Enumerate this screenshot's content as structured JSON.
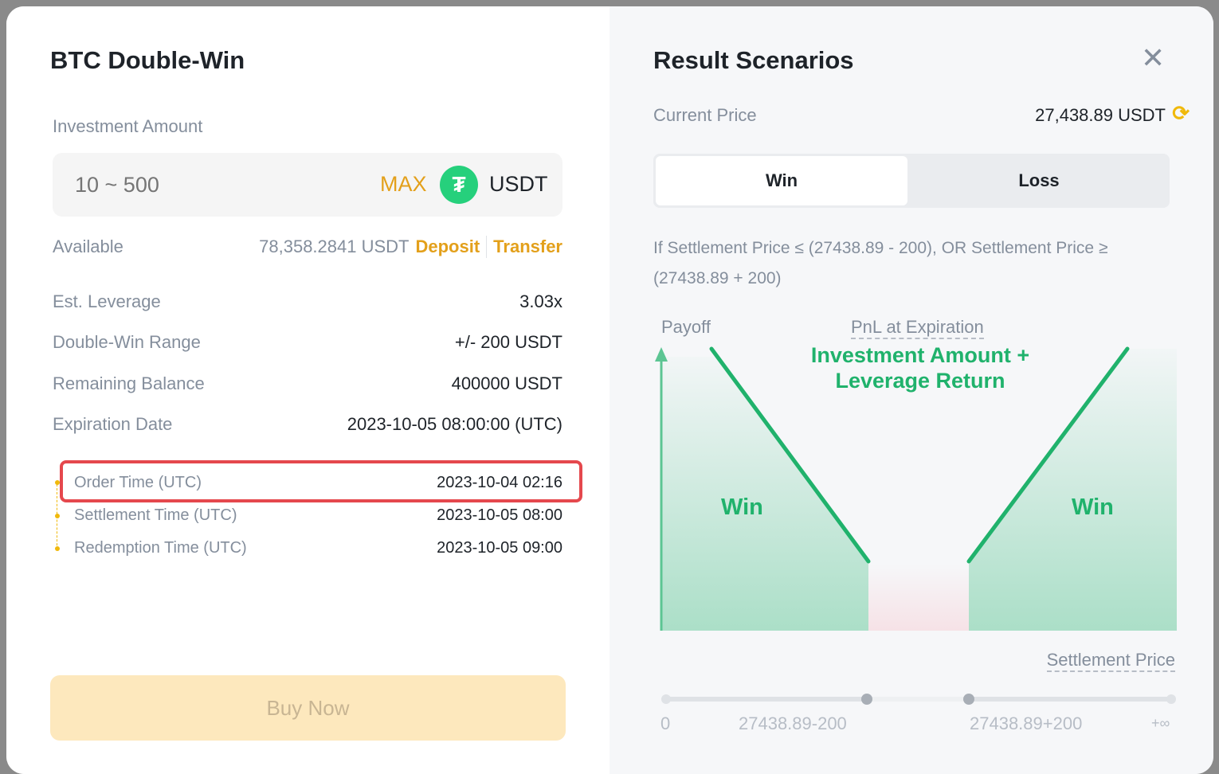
{
  "left": {
    "title": "BTC Double-Win",
    "investment_label": "Investment Amount",
    "investment_placeholder": "10 ~ 500",
    "max_label": "MAX",
    "currency": "USDT",
    "available_label": "Available",
    "available_value": "78,358.2841 USDT",
    "deposit_label": "Deposit",
    "transfer_label": "Transfer",
    "details": [
      {
        "label": "Est. Leverage",
        "value": "3.03x"
      },
      {
        "label": "Double-Win Range",
        "value": "+/- 200 USDT"
      },
      {
        "label": "Remaining Balance",
        "value": "400000 USDT"
      },
      {
        "label": "Expiration Date",
        "value": "2023-10-05 08:00:00 (UTC)"
      }
    ],
    "timeline": [
      {
        "label": "Order Time (UTC)",
        "value": "2023-10-04 02:16"
      },
      {
        "label": "Settlement Time (UTC)",
        "value": "2023-10-05 08:00"
      },
      {
        "label": "Redemption Time (UTC)",
        "value": "2023-10-05 09:00"
      }
    ],
    "buy_label": "Buy Now",
    "accent": "#e3a01b"
  },
  "right": {
    "title": "Result Scenarios",
    "current_price_label": "Current Price",
    "current_price_value": "27,438.89 USDT",
    "tabs": [
      {
        "label": "Win",
        "active": true
      },
      {
        "label": "Loss",
        "active": false
      }
    ],
    "condition": "If Settlement Price ≤ (27438.89 - 200), OR Settlement Price ≥ (27438.89 + 200)",
    "chart": {
      "y_label": "Payoff",
      "header": "PnL at Expiration",
      "caption_line1": "Investment Amount +",
      "caption_line2": "Leverage Return",
      "left_region": "Win",
      "right_region": "Win",
      "x_label": "Settlement Price",
      "ticks": [
        "0",
        "27438.89-200",
        "27438.89+200",
        "+∞"
      ],
      "win_color": "#20b26c"
    }
  }
}
